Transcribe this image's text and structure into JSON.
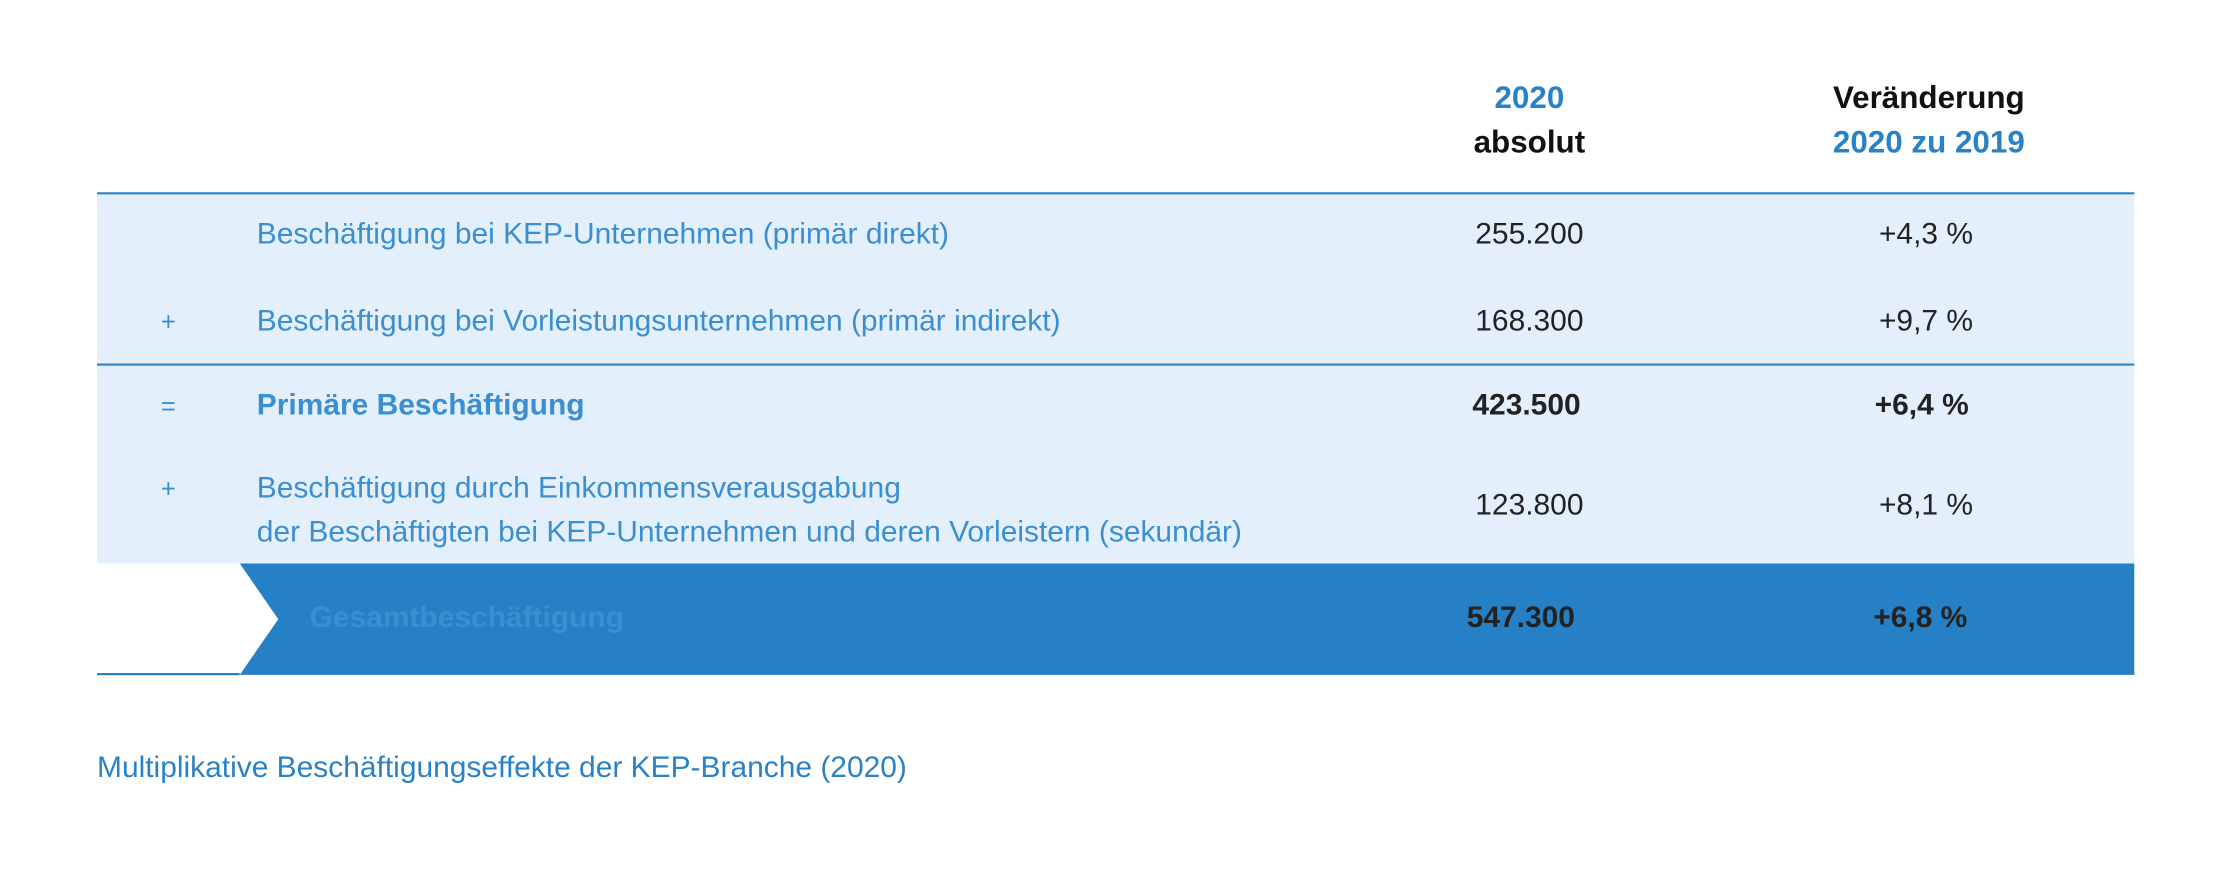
{
  "table": {
    "header": {
      "absolute": [
        "2020",
        "absolut"
      ],
      "change": [
        "Veränderung",
        "2020 zu 2019"
      ]
    },
    "rows": [
      {
        "label": [
          "Beschäftigung bei KEP-Unternehmen (primär direkt)"
        ],
        "absolute": "255.200",
        "change": "+4,3 %"
      },
      {
        "op": "+",
        "label": [
          "Beschäftigung bei Vorleistungsunternehmen (primär indirekt)"
        ],
        "absolute": "168.300",
        "change": "+9,7 %"
      },
      {
        "op": "=",
        "label": [
          "Primäre Beschäftigung"
        ],
        "absolute": "423.500",
        "change": "+6,4 %"
      },
      {
        "op": "+",
        "label": [
          "Beschäftigung durch Einkommensverausgabung",
          "der Beschäftigten bei KEP-Unternehmen und deren Vorleistern (sekundär)"
        ],
        "absolute": "123.800",
        "change": "+8,1 %"
      }
    ],
    "total": {
      "label": "Gesamtbeschäftigung",
      "absolute": "547.300",
      "change": "+6,8 %"
    }
  },
  "caption": "Multiplikative Beschäftigungseffekte der KEP-Branche (2020)"
}
